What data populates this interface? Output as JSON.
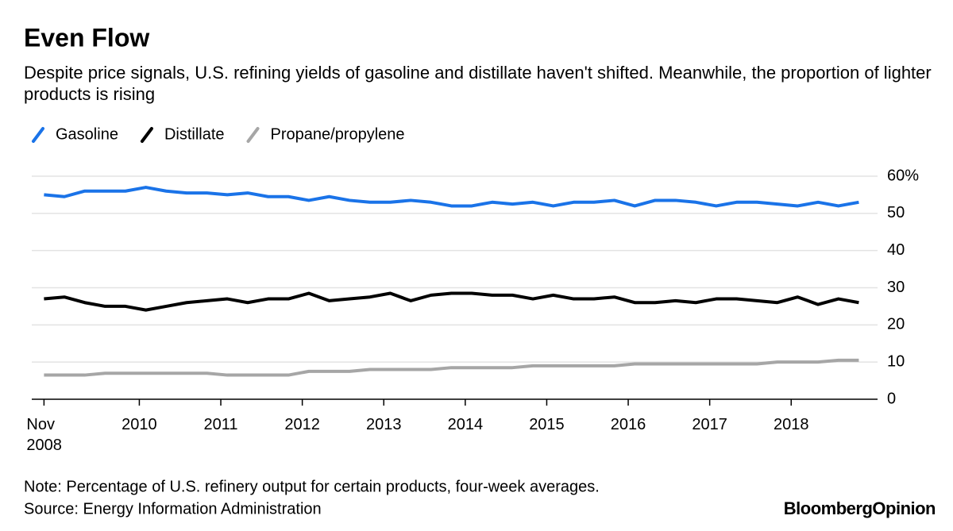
{
  "chart_data": {
    "type": "line",
    "title": "Even Flow",
    "subtitle": "Despite price signals, U.S. refining yields of gasoline and distillate haven't shifted. Meanwhile, the proportion of lighter products is rising",
    "note": "Note: Percentage of U.S. refinery output for certain products, four-week averages.",
    "source": "Source: Energy Information Administration",
    "branding": "BloombergOpinion",
    "x": [
      2008.83,
      2009.08,
      2009.33,
      2009.58,
      2009.83,
      2010.08,
      2010.33,
      2010.58,
      2010.83,
      2011.08,
      2011.33,
      2011.58,
      2011.83,
      2012.08,
      2012.33,
      2012.58,
      2012.83,
      2013.08,
      2013.33,
      2013.58,
      2013.83,
      2014.08,
      2014.33,
      2014.58,
      2014.83,
      2015.08,
      2015.33,
      2015.58,
      2015.83,
      2016.08,
      2016.33,
      2016.58,
      2016.83,
      2017.08,
      2017.33,
      2017.58,
      2017.83,
      2018.08,
      2018.33,
      2018.58,
      2018.83
    ],
    "series": [
      {
        "name": "Gasoline",
        "color": "#1a73e8",
        "values": [
          55,
          54.5,
          56,
          56,
          56,
          57,
          56,
          55.5,
          55.5,
          55,
          55.5,
          54.5,
          54.5,
          53.5,
          54.5,
          53.5,
          53,
          53,
          53.5,
          53,
          52,
          52,
          53,
          52.5,
          53,
          52,
          53,
          53,
          53.5,
          52,
          53.5,
          53.5,
          53,
          52,
          53,
          53,
          52.5,
          52,
          53,
          52,
          53
        ]
      },
      {
        "name": "Distillate",
        "color": "#000000",
        "values": [
          27,
          27.5,
          26,
          25,
          25,
          24,
          25,
          26,
          26.5,
          27,
          26,
          27,
          27,
          28.5,
          26.5,
          27,
          27.5,
          28.5,
          26.5,
          28,
          28.5,
          28.5,
          28,
          28,
          27,
          28,
          27,
          27,
          27.5,
          26,
          26,
          26.5,
          26,
          27,
          27,
          26.5,
          26,
          27.5,
          25.5,
          27,
          26
        ]
      },
      {
        "name": "Propane/propylene",
        "color": "#a6a6a6",
        "values": [
          6.5,
          6.5,
          6.5,
          7,
          7,
          7,
          7,
          7,
          7,
          6.5,
          6.5,
          6.5,
          6.5,
          7.5,
          7.5,
          7.5,
          8,
          8,
          8,
          8,
          8.5,
          8.5,
          8.5,
          8.5,
          9,
          9,
          9,
          9,
          9,
          9.5,
          9.5,
          9.5,
          9.5,
          9.5,
          9.5,
          9.5,
          10,
          10,
          10,
          10.5,
          10.5
        ]
      }
    ],
    "xlim": [
      2008.68,
      2019.06
    ],
    "xticks": [
      {
        "value": 2008.83,
        "label": "Nov\n2008"
      },
      2010,
      2011,
      2012,
      2013,
      2014,
      2015,
      2016,
      2017,
      2018
    ],
    "ylim": [
      0,
      60
    ],
    "yticks": [
      0,
      10,
      20,
      30,
      40,
      50,
      {
        "value": 60,
        "label": "60%"
      }
    ],
    "grid": true
  }
}
